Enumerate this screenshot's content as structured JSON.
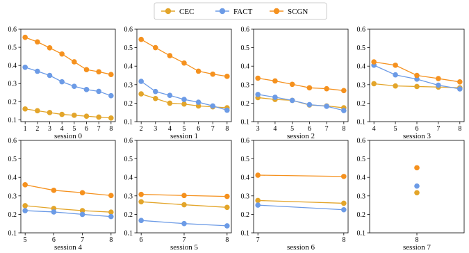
{
  "legend": [
    {
      "name": "CEC",
      "color": "#E3A52A"
    },
    {
      "name": "FACT",
      "color": "#6C9BE6"
    },
    {
      "name": "SCGN",
      "color": "#F5911E"
    }
  ],
  "chart_data": [
    {
      "type": "line",
      "xlabel": "session 0",
      "x": [
        1,
        2,
        3,
        4,
        5,
        6,
        7,
        8
      ],
      "ylim": [
        0.09,
        0.6
      ],
      "yticks": [
        0.1,
        0.2,
        0.3,
        0.4,
        0.5,
        0.6
      ],
      "series": [
        {
          "name": "CEC",
          "values": [
            0.16,
            0.15,
            0.14,
            0.13,
            0.125,
            0.12,
            0.115,
            0.11
          ]
        },
        {
          "name": "FACT",
          "values": [
            0.39,
            0.368,
            0.345,
            0.31,
            0.285,
            0.267,
            0.257,
            0.233
          ]
        },
        {
          "name": "SCGN",
          "values": [
            0.555,
            0.53,
            0.497,
            0.463,
            0.42,
            0.377,
            0.365,
            0.35
          ]
        }
      ]
    },
    {
      "type": "line",
      "xlabel": "session 1",
      "x": [
        2,
        3,
        4,
        5,
        6,
        7,
        8
      ],
      "ylim": [
        0.1,
        0.6
      ],
      "yticks": [
        0.1,
        0.2,
        0.3,
        0.4,
        0.5,
        0.6
      ],
      "series": [
        {
          "name": "CEC",
          "values": [
            0.25,
            0.225,
            0.2,
            0.195,
            0.185,
            0.18,
            0.175
          ]
        },
        {
          "name": "FACT",
          "values": [
            0.318,
            0.263,
            0.242,
            0.22,
            0.205,
            0.185,
            0.162
          ]
        },
        {
          "name": "SCGN",
          "values": [
            0.545,
            0.5,
            0.457,
            0.417,
            0.373,
            0.357,
            0.345
          ]
        }
      ]
    },
    {
      "type": "line",
      "xlabel": "session 2",
      "x": [
        3,
        4,
        5,
        6,
        7,
        8
      ],
      "ylim": [
        0.1,
        0.6
      ],
      "yticks": [
        0.1,
        0.2,
        0.3,
        0.4,
        0.5,
        0.6
      ],
      "series": [
        {
          "name": "CEC",
          "values": [
            0.23,
            0.22,
            0.215,
            0.19,
            0.185,
            0.175
          ]
        },
        {
          "name": "FACT",
          "values": [
            0.247,
            0.232,
            0.215,
            0.192,
            0.183,
            0.16
          ]
        },
        {
          "name": "SCGN",
          "values": [
            0.335,
            0.32,
            0.302,
            0.283,
            0.278,
            0.268
          ]
        }
      ]
    },
    {
      "type": "line",
      "xlabel": "session 3",
      "x": [
        4,
        5,
        6,
        7,
        8
      ],
      "ylim": [
        0.1,
        0.6
      ],
      "yticks": [
        0.1,
        0.2,
        0.3,
        0.4,
        0.5,
        0.6
      ],
      "series": [
        {
          "name": "CEC",
          "values": [
            0.305,
            0.293,
            0.29,
            0.287,
            0.283
          ]
        },
        {
          "name": "FACT",
          "values": [
            0.405,
            0.353,
            0.33,
            0.297,
            0.277
          ]
        },
        {
          "name": "SCGN",
          "values": [
            0.423,
            0.405,
            0.35,
            0.333,
            0.315
          ]
        }
      ]
    },
    {
      "type": "line",
      "xlabel": "session 4",
      "x": [
        5,
        6,
        7,
        8
      ],
      "ylim": [
        0.1,
        0.6
      ],
      "yticks": [
        0.1,
        0.2,
        0.3,
        0.4,
        0.5,
        0.6
      ],
      "series": [
        {
          "name": "CEC",
          "values": [
            0.247,
            0.232,
            0.22,
            0.212
          ]
        },
        {
          "name": "FACT",
          "values": [
            0.22,
            0.213,
            0.2,
            0.188
          ]
        },
        {
          "name": "SCGN",
          "values": [
            0.36,
            0.33,
            0.317,
            0.302
          ]
        }
      ]
    },
    {
      "type": "line",
      "xlabel": "session 5",
      "x": [
        6,
        7,
        8
      ],
      "ylim": [
        0.1,
        0.6
      ],
      "yticks": [
        0.1,
        0.2,
        0.3,
        0.4,
        0.5,
        0.6
      ],
      "series": [
        {
          "name": "CEC",
          "values": [
            0.268,
            0.252,
            0.238
          ]
        },
        {
          "name": "FACT",
          "values": [
            0.167,
            0.15,
            0.138
          ]
        },
        {
          "name": "SCGN",
          "values": [
            0.308,
            0.302,
            0.297
          ]
        }
      ]
    },
    {
      "type": "line",
      "xlabel": "session 6",
      "x": [
        7,
        8
      ],
      "ylim": [
        0.1,
        0.6
      ],
      "yticks": [
        0.1,
        0.2,
        0.3,
        0.4,
        0.5,
        0.6
      ],
      "series": [
        {
          "name": "CEC",
          "values": [
            0.275,
            0.26
          ]
        },
        {
          "name": "FACT",
          "values": [
            0.25,
            0.225
          ]
        },
        {
          "name": "SCGN",
          "values": [
            0.412,
            0.405
          ]
        }
      ]
    },
    {
      "type": "scatter",
      "xlabel": "session 7",
      "x": [
        8
      ],
      "ylim": [
        0.1,
        0.6
      ],
      "yticks": [
        0.1,
        0.2,
        0.3,
        0.4,
        0.5,
        0.6
      ],
      "series": [
        {
          "name": "CEC",
          "values": [
            0.317
          ]
        },
        {
          "name": "FACT",
          "values": [
            0.353
          ]
        },
        {
          "name": "SCGN",
          "values": [
            0.452
          ]
        }
      ]
    }
  ]
}
